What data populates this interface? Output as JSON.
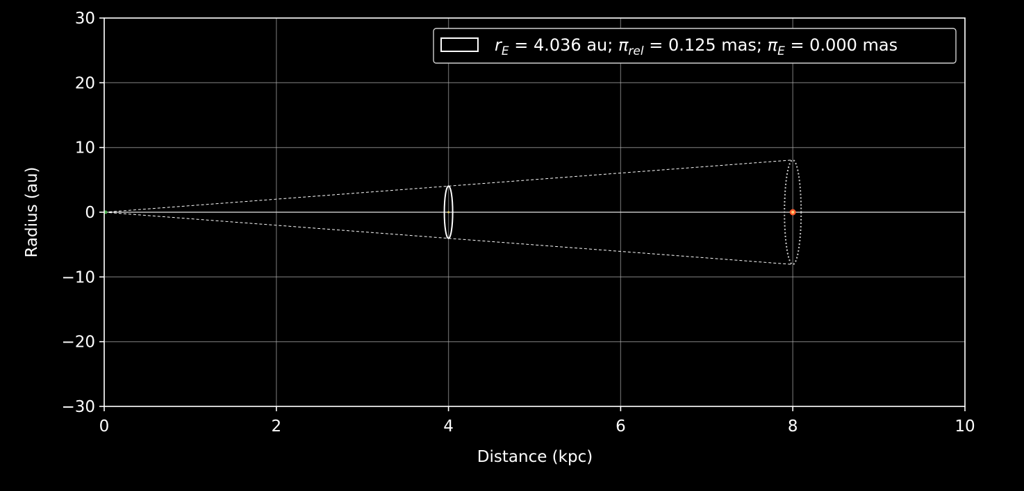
{
  "chart_data": {
    "type": "scatter",
    "xlabel": "Distance (kpc)",
    "ylabel": "Radius (au)",
    "xlim": [
      0,
      10
    ],
    "ylim": [
      -30,
      30
    ],
    "x_ticks": [
      0,
      2,
      4,
      6,
      8,
      10
    ],
    "x_tick_labels": [
      "0",
      "2",
      "4",
      "6",
      "8",
      "10"
    ],
    "y_ticks": [
      30,
      20,
      10,
      0,
      -10,
      -20,
      -30
    ],
    "y_tick_labels": [
      "30",
      "20",
      "10",
      "0",
      "−10",
      "−20",
      "−30"
    ],
    "grid": true,
    "legend_position": "top-right",
    "legend": {
      "r_E_symbol": "r",
      "r_E_sub": "E",
      "r_E_value": " = 4.036 au; ",
      "pi_rel_symbol": "π",
      "pi_rel_sub": "rel",
      "pi_rel_value": " = 0.125 mas; ",
      "pi_E_symbol": "π",
      "pi_E_sub": "E",
      "pi_E_value": " = 0.000 mas"
    },
    "observer": {
      "x": 0,
      "y": 0
    },
    "lens": {
      "x": 4.0,
      "y": 0,
      "einstein_radius_au": 4.036
    },
    "source": {
      "x": 8.0,
      "y": 0,
      "projected_radius_au": 8.07
    },
    "horizontal_line": {
      "y": 0
    },
    "cone_lines": [
      {
        "x": [
          0,
          8.0
        ],
        "y": [
          0,
          8.07
        ]
      },
      {
        "x": [
          0,
          8.0
        ],
        "y": [
          0,
          -8.07
        ]
      }
    ],
    "colors": {
      "background": "#000000",
      "foreground": "#ffffff",
      "grid": "#b0b0b0",
      "source_marker": "#ff5a2a",
      "source_core": "#ffd27a",
      "observer_marker": "#4caf50"
    }
  }
}
